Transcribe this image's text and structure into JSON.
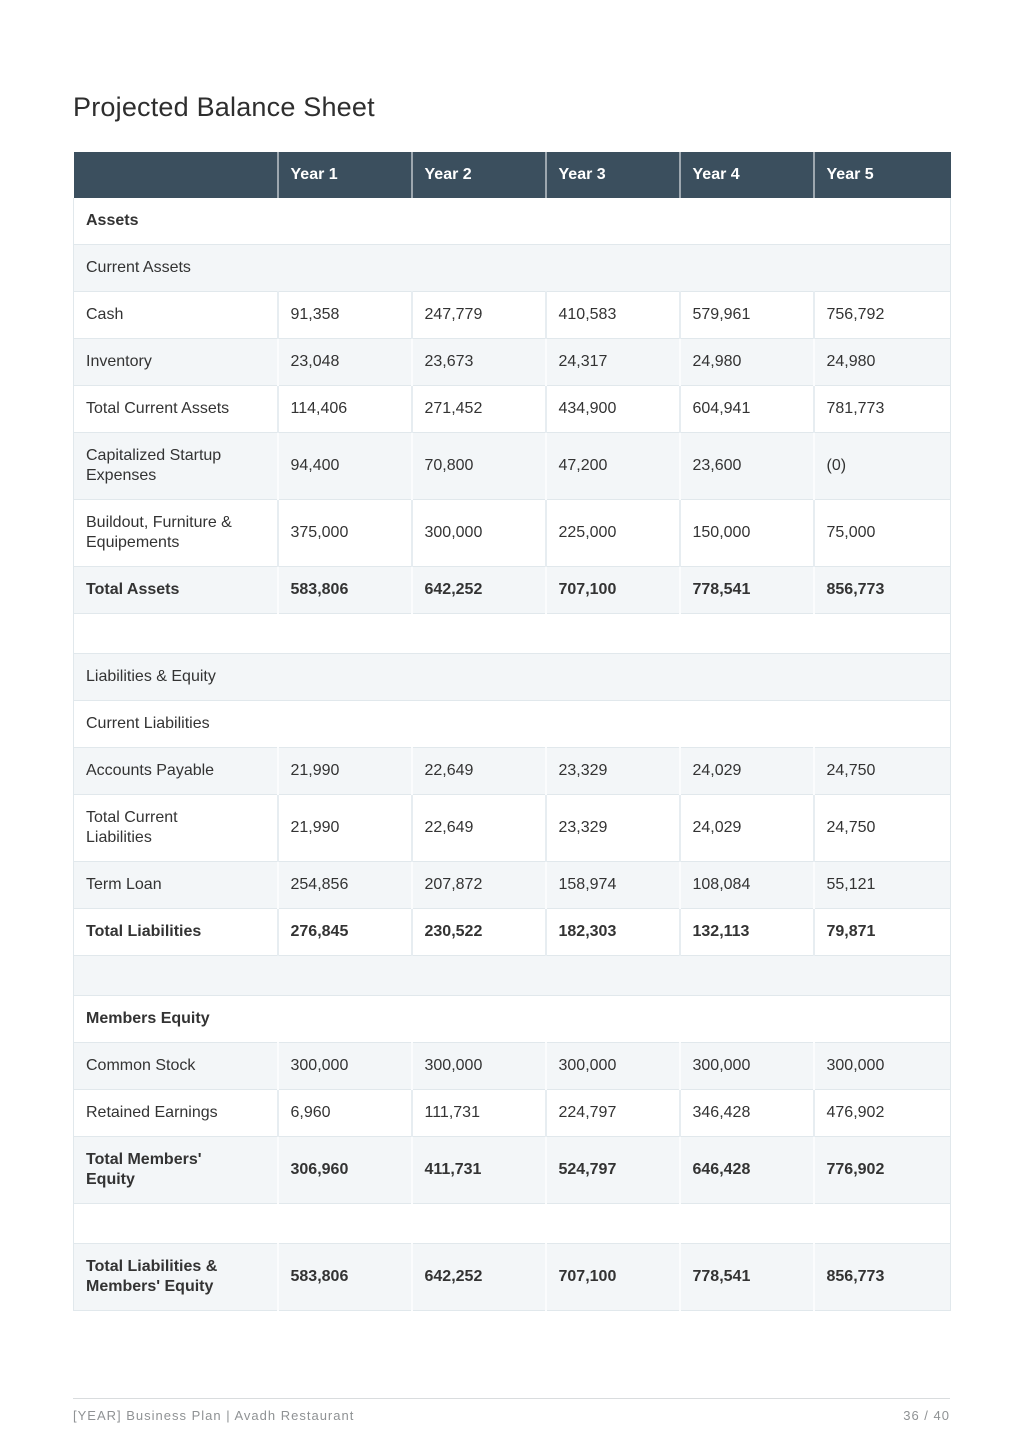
{
  "page": {
    "title": "Projected Balance Sheet",
    "footer": {
      "left": "[YEAR] Business Plan | Avadh Restaurant",
      "right": "36 / 40"
    }
  },
  "colors": {
    "header-bg": "#3b4f5e",
    "header-text": "#ffffff",
    "row-alt-bg": "#f3f6f8",
    "border": "#e1e8ec",
    "text": "#333333",
    "muted": "#8f9294"
  },
  "table": {
    "columns": [
      "",
      "Year 1",
      "Year 2",
      "Year 3",
      "Year 4",
      "Year 5"
    ],
    "rows": [
      {
        "label": "Assets",
        "type": "section",
        "bold": true
      },
      {
        "label": "Current Assets",
        "type": "section",
        "bold": false
      },
      {
        "label": "Cash",
        "type": "data",
        "bold": false,
        "values": [
          "91,358",
          "247,779",
          "410,583",
          "579,961",
          "756,792"
        ]
      },
      {
        "label": "Inventory",
        "type": "data",
        "bold": false,
        "values": [
          "23,048",
          "23,673",
          "24,317",
          "24,980",
          "24,980"
        ]
      },
      {
        "label": "Total Current Assets",
        "type": "data",
        "bold": false,
        "values": [
          "114,406",
          "271,452",
          "434,900",
          "604,941",
          "781,773"
        ]
      },
      {
        "label": "Capitalized Startup Expenses",
        "type": "data",
        "bold": false,
        "values": [
          "94,400",
          "70,800",
          "47,200",
          "23,600",
          "(0)"
        ]
      },
      {
        "label": "Buildout, Furniture & Equipements",
        "type": "data",
        "bold": false,
        "values": [
          "375,000",
          "300,000",
          "225,000",
          "150,000",
          "75,000"
        ]
      },
      {
        "label": "Total Assets",
        "type": "data",
        "bold": true,
        "values": [
          "583,806",
          "642,252",
          "707,100",
          "778,541",
          "856,773"
        ]
      },
      {
        "label": "",
        "type": "spacer",
        "bold": false
      },
      {
        "label": "Liabilities & Equity",
        "type": "section",
        "bold": false
      },
      {
        "label": "Current Liabilities",
        "type": "section",
        "bold": false
      },
      {
        "label": "Accounts Payable",
        "type": "data",
        "bold": false,
        "values": [
          "21,990",
          "22,649",
          "23,329",
          "24,029",
          "24,750"
        ]
      },
      {
        "label": "Total Current Liabilities",
        "type": "data",
        "bold": false,
        "values": [
          "21,990",
          "22,649",
          "23,329",
          "24,029",
          "24,750"
        ]
      },
      {
        "label": "Term Loan",
        "type": "data",
        "bold": false,
        "values": [
          "254,856",
          "207,872",
          "158,974",
          "108,084",
          "55,121"
        ]
      },
      {
        "label": "Total Liabilities",
        "type": "data",
        "bold": true,
        "values": [
          "276,845",
          "230,522",
          "182,303",
          "132,113",
          "79,871"
        ]
      },
      {
        "label": "",
        "type": "spacer",
        "bold": false
      },
      {
        "label": "Members Equity",
        "type": "section",
        "bold": true
      },
      {
        "label": "Common Stock",
        "type": "data",
        "bold": false,
        "values": [
          "300,000",
          "300,000",
          "300,000",
          "300,000",
          "300,000"
        ]
      },
      {
        "label": "Retained Earnings",
        "type": "data",
        "bold": false,
        "values": [
          "6,960",
          "111,731",
          "224,797",
          "346,428",
          "476,902"
        ]
      },
      {
        "label": "Total Members' Equity",
        "type": "data",
        "bold": true,
        "values": [
          "306,960",
          "411,731",
          "524,797",
          "646,428",
          "776,902"
        ]
      },
      {
        "label": "",
        "type": "spacer",
        "bold": false
      },
      {
        "label": "Total Liabilities & Members' Equity",
        "type": "data",
        "bold": true,
        "values": [
          "583,806",
          "642,252",
          "707,100",
          "778,541",
          "856,773"
        ]
      }
    ]
  }
}
